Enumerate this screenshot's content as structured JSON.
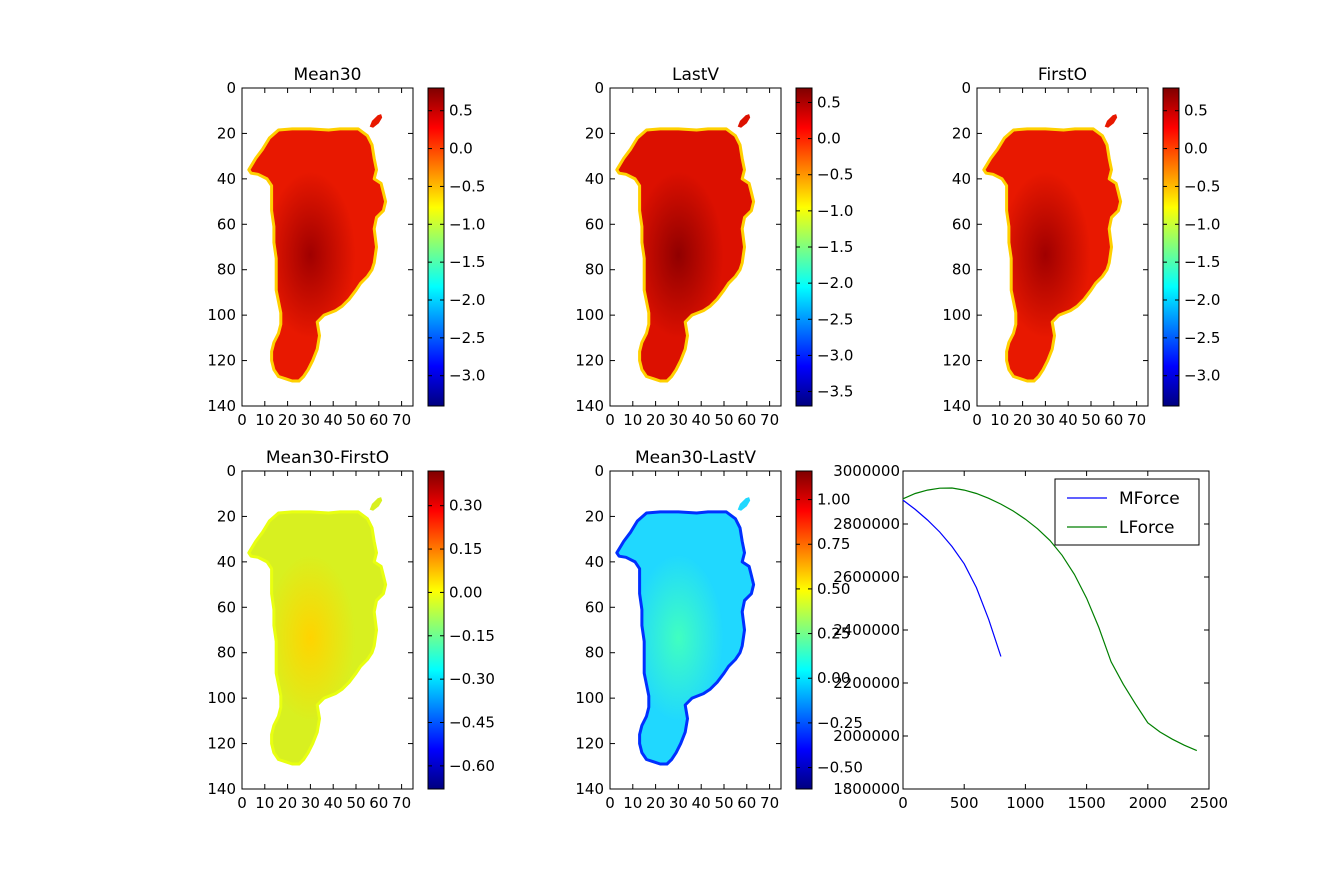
{
  "colors": {
    "jet": [
      "#00007f",
      "#0000ff",
      "#007fff",
      "#00ffff",
      "#7fff7f",
      "#ffff00",
      "#ff7f00",
      "#ff0000",
      "#7f0000"
    ],
    "mforce": "#0000ff",
    "lforce": "#007f00"
  },
  "chart_data": [
    {
      "type": "heatmap",
      "title": "Mean30",
      "xlim": [
        0,
        75
      ],
      "ylim": [
        140,
        0
      ],
      "xticks": [
        0,
        10,
        20,
        30,
        40,
        50,
        60,
        70
      ],
      "yticks": [
        0,
        20,
        40,
        60,
        80,
        100,
        120,
        140
      ],
      "colorbar": {
        "min": -3.4,
        "max": 0.8,
        "ticks": [
          "0.5",
          "0.0",
          "−0.5",
          "−1.0",
          "−1.5",
          "−2.0",
          "−2.5",
          "−3.0"
        ],
        "values": [
          0.5,
          0.0,
          -0.5,
          -1.0,
          -1.5,
          -2.0,
          -2.5,
          -3.0
        ]
      },
      "interior_color": "#e81800",
      "core_color": "#a00000",
      "edge_color": "#ffd000"
    },
    {
      "type": "heatmap",
      "title": "LastV",
      "xlim": [
        0,
        75
      ],
      "ylim": [
        140,
        0
      ],
      "xticks": [
        0,
        10,
        20,
        30,
        40,
        50,
        60,
        70
      ],
      "yticks": [
        0,
        20,
        40,
        60,
        80,
        100,
        120,
        140
      ],
      "colorbar": {
        "min": -3.7,
        "max": 0.7,
        "ticks": [
          "0.5",
          "0.0",
          "−0.5",
          "−1.0",
          "−1.5",
          "−2.0",
          "−2.5",
          "−3.0",
          "−3.5"
        ],
        "values": [
          0.5,
          0.0,
          -0.5,
          -1.0,
          -1.5,
          -2.0,
          -2.5,
          -3.0,
          -3.5
        ]
      },
      "interior_color": "#dc1000",
      "core_color": "#900000",
      "edge_color": "#ffd000"
    },
    {
      "type": "heatmap",
      "title": "FirstO",
      "xlim": [
        0,
        75
      ],
      "ylim": [
        140,
        0
      ],
      "xticks": [
        0,
        10,
        20,
        30,
        40,
        50,
        60,
        70
      ],
      "yticks": [
        0,
        20,
        40,
        60,
        80,
        100,
        120,
        140
      ],
      "colorbar": {
        "min": -3.4,
        "max": 0.8,
        "ticks": [
          "0.5",
          "0.0",
          "−0.5",
          "−1.0",
          "−1.5",
          "−2.0",
          "−2.5",
          "−3.0"
        ],
        "values": [
          0.5,
          0.0,
          -0.5,
          -1.0,
          -1.5,
          -2.0,
          -2.5,
          -3.0
        ]
      },
      "interior_color": "#e81800",
      "core_color": "#a00000",
      "edge_color": "#ffd000"
    },
    {
      "type": "heatmap",
      "title": "Mean30-FirstO",
      "xlim": [
        0,
        75
      ],
      "ylim": [
        140,
        0
      ],
      "xticks": [
        0,
        10,
        20,
        30,
        40,
        50,
        60,
        70
      ],
      "yticks": [
        0,
        20,
        40,
        60,
        80,
        100,
        120,
        140
      ],
      "colorbar": {
        "min": -0.68,
        "max": 0.42,
        "ticks": [
          "0.30",
          "0.15",
          "0.00",
          "−0.15",
          "−0.30",
          "−0.45",
          "−0.60"
        ],
        "values": [
          0.3,
          0.15,
          0.0,
          -0.15,
          -0.3,
          -0.45,
          -0.6
        ]
      },
      "interior_color": "#d8f020",
      "core_color": "#ffd400",
      "edge_color": "#e8ff10"
    },
    {
      "type": "heatmap",
      "title": "Mean30-LastV",
      "xlim": [
        0,
        75
      ],
      "ylim": [
        140,
        0
      ],
      "xticks": [
        0,
        10,
        20,
        30,
        40,
        50,
        60,
        70
      ],
      "yticks": [
        0,
        20,
        40,
        60,
        80,
        100,
        120,
        140
      ],
      "colorbar": {
        "min": -0.62,
        "max": 1.16,
        "ticks": [
          "1.00",
          "0.75",
          "0.50",
          "0.25",
          "0.00",
          "−0.25",
          "−0.50"
        ],
        "values": [
          1.0,
          0.75,
          0.5,
          0.25,
          0.0,
          -0.25,
          -0.5
        ]
      },
      "interior_color": "#20d8ff",
      "core_color": "#40ffc0",
      "edge_color": "#0030ff"
    },
    {
      "type": "line",
      "xlim": [
        0,
        2500
      ],
      "ylim": [
        1800000,
        3000000
      ],
      "xticks": [
        0,
        500,
        1000,
        1500,
        2000,
        2500
      ],
      "yticks": [
        1800000,
        2000000,
        2200000,
        2400000,
        2600000,
        2800000,
        3000000
      ],
      "legend": "top-right",
      "series": [
        {
          "name": "MForce",
          "x": [
            0,
            100,
            200,
            300,
            400,
            500,
            600,
            700,
            800
          ],
          "y": [
            2890000,
            2855000,
            2815000,
            2770000,
            2715000,
            2650000,
            2560000,
            2440000,
            2300000
          ]
        },
        {
          "name": "LForce",
          "x": [
            0,
            100,
            200,
            300,
            400,
            500,
            600,
            700,
            800,
            900,
            1000,
            1100,
            1200,
            1300,
            1400,
            1500,
            1600,
            1700,
            1800,
            1900,
            2000,
            2100,
            2200,
            2300,
            2400
          ],
          "y": [
            2895000,
            2915000,
            2928000,
            2935000,
            2936000,
            2928000,
            2915000,
            2897000,
            2875000,
            2849000,
            2818000,
            2782000,
            2738000,
            2682000,
            2610000,
            2520000,
            2410000,
            2280000,
            2195000,
            2120000,
            2050000,
            2015000,
            1988000,
            1965000,
            1945000
          ]
        }
      ]
    }
  ]
}
